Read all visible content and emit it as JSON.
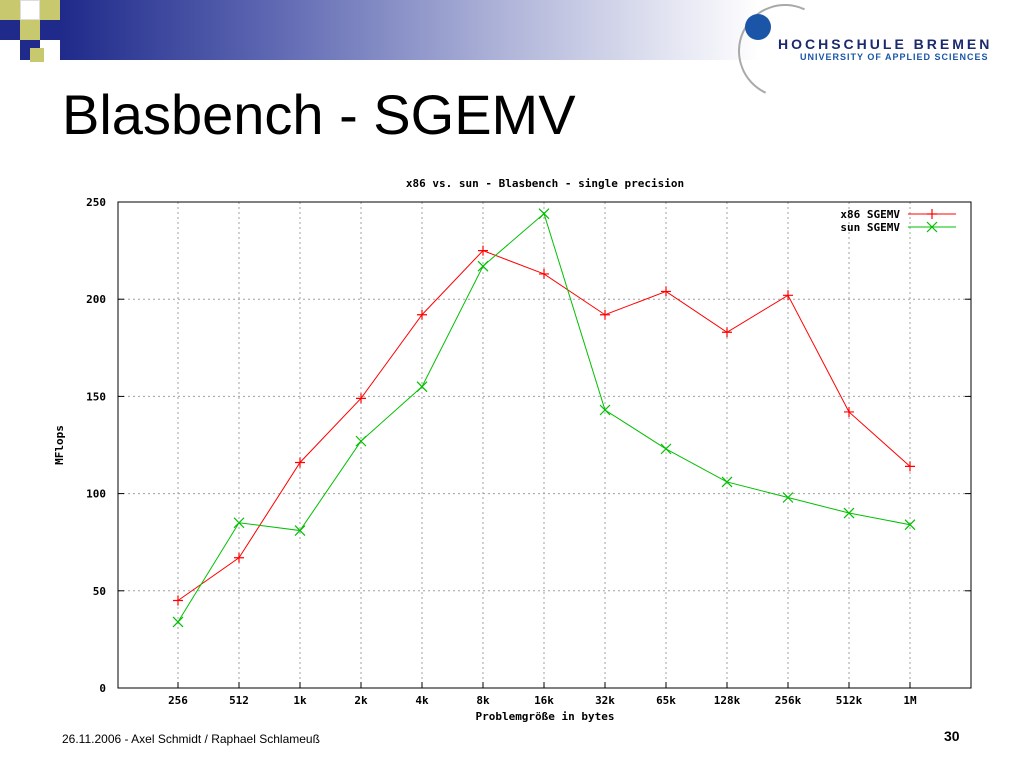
{
  "slide": {
    "title": "Blasbench - SGEMV",
    "footer": "26.11.2006 - Axel Schmidt / Raphael Schlameuß",
    "page_number": "30"
  },
  "logo": {
    "name": "HOCHSCHULE BREMEN",
    "subtitle": "UNIVERSITY OF APPLIED SCIENCES"
  },
  "colors": {
    "header_dark": "#1f2a8a",
    "accent_yellow": "#c8c86e",
    "series_x86": "#ff0000",
    "series_sun": "#00c000"
  },
  "chart_data": {
    "type": "line",
    "title": "x86 vs. sun - Blasbench - single precision",
    "xlabel": "Problemgröße in bytes",
    "ylabel": "MFlops",
    "categories": [
      "256",
      "512",
      "1k",
      "2k",
      "4k",
      "8k",
      "16k",
      "32k",
      "65k",
      "128k",
      "256k",
      "512k",
      "1M"
    ],
    "ylim": [
      0,
      250
    ],
    "yticks": [
      0,
      50,
      100,
      150,
      200,
      250
    ],
    "grid": true,
    "legend_position": "top-right",
    "series": [
      {
        "name": "x86 SGEMV",
        "color": "#ff0000",
        "marker": "plus",
        "values": [
          45,
          67,
          116,
          149,
          192,
          225,
          213,
          192,
          204,
          183,
          202,
          142,
          114
        ]
      },
      {
        "name": "sun SGEMV",
        "color": "#00c000",
        "marker": "cross",
        "values": [
          34,
          85,
          81,
          127,
          155,
          217,
          244,
          143,
          123,
          106,
          98,
          90,
          84
        ]
      }
    ]
  }
}
